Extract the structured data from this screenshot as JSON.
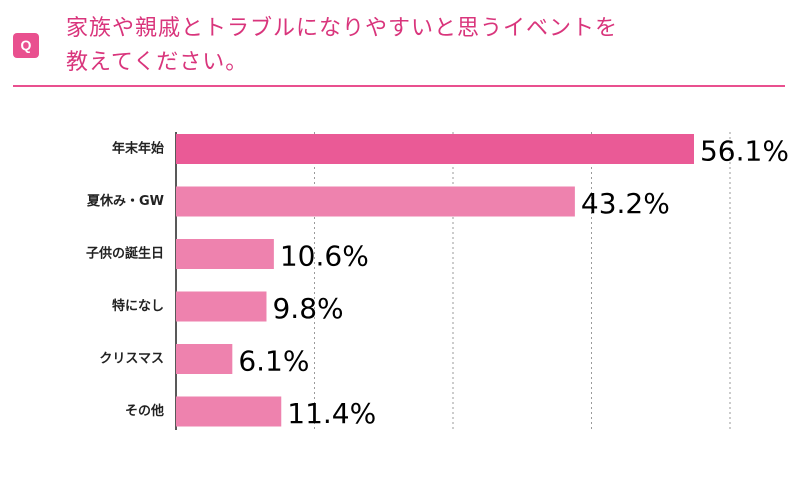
{
  "header": {
    "badge": "Q",
    "question_line1": "家族や親戚とトラブルになりやすいと思うイベントを",
    "question_line2": "教えてください。",
    "accent_color": "#e9508f"
  },
  "chart_data": {
    "type": "bar",
    "orientation": "horizontal",
    "categories": [
      "年末年始",
      "夏休み・GW",
      "子供の誕生日",
      "特になし",
      "クリスマス",
      "その他"
    ],
    "values": [
      56.1,
      43.2,
      10.6,
      9.8,
      6.1,
      11.4
    ],
    "value_labels": [
      "56.1%",
      "43.2%",
      "10.6%",
      "9.8%",
      "6.1%",
      "11.4%"
    ],
    "xlim": [
      0,
      60
    ],
    "grid": true,
    "gridlines": [
      0,
      15,
      30,
      45,
      60
    ],
    "bar_colors": [
      "#ea5a96",
      "#ee82ae",
      "#ee82ae",
      "#ee82ae",
      "#ee82ae",
      "#ee82ae"
    ],
    "title": "",
    "xlabel": "",
    "ylabel": ""
  }
}
